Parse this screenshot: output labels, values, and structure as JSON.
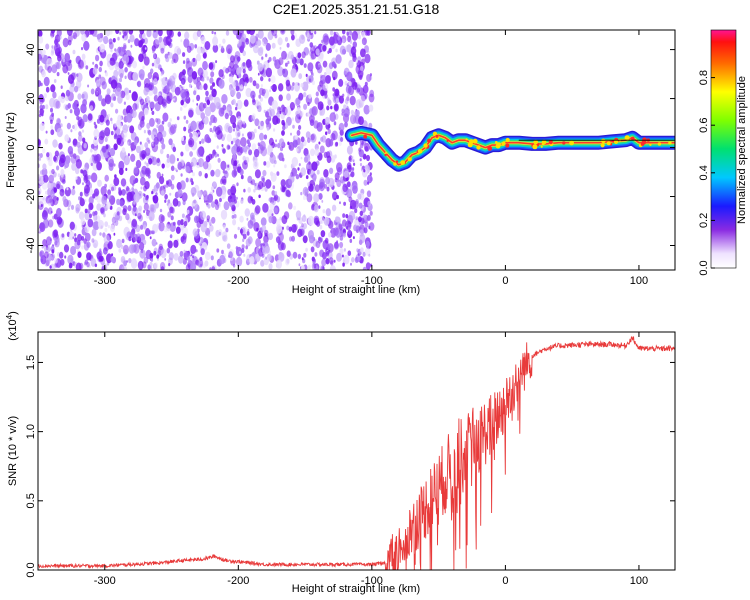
{
  "title": "C2E1.2025.351.21.51.G18",
  "chart_data": [
    {
      "type": "heatmap",
      "xlabel": "Height of straight line (km)",
      "ylabel": "Frequency (Hz)",
      "xlim": [
        -350,
        127
      ],
      "ylim": [
        -50,
        48
      ],
      "xticks": [
        -300,
        -200,
        -100,
        0,
        100
      ],
      "yticks": [
        -40,
        -20,
        0,
        20,
        40
      ],
      "colorbar": {
        "label": "Normalized spectral amplitude",
        "range": [
          0.0,
          1.0
        ],
        "ticks": [
          "0.0",
          "0.2",
          "0.4",
          "0.6",
          "0.8"
        ]
      },
      "signal_trace": {
        "x": [
          -115,
          -108,
          -100,
          -95,
          -90,
          -85,
          -80,
          -75,
          -70,
          -65,
          -60,
          -55,
          -50,
          -45,
          -40,
          -35,
          -30,
          -25,
          -20,
          -15,
          -10,
          -5,
          0,
          10,
          20,
          30,
          40,
          50,
          60,
          70,
          80,
          90,
          95,
          100,
          110,
          120,
          127
        ],
        "y": [
          5,
          6,
          5,
          1,
          -2,
          -5,
          -7,
          -6,
          -3,
          -2,
          0,
          4,
          5,
          4,
          2,
          3,
          3,
          2,
          1,
          0,
          1,
          1,
          2,
          2,
          1.5,
          1.5,
          2,
          2,
          2,
          2,
          2.5,
          3,
          4,
          2,
          2,
          2,
          2
        ]
      },
      "noise_region_x": [
        -350,
        -100
      ]
    },
    {
      "type": "line",
      "xlabel": "Height of straight line (km)",
      "ylabel": "SNR (10 * v/v)",
      "scale_note": "(x10",
      "scale_exp": "4",
      "xlim": [
        -350,
        127
      ],
      "ylim": [
        0.0,
        1.72
      ],
      "xticks": [
        -300,
        -200,
        -100,
        0,
        100
      ],
      "yticks": [
        "0.0",
        "0.5",
        "1.0",
        "1.5"
      ],
      "color": "#e83a3a",
      "series_envelope": {
        "x": [
          -350,
          -300,
          -260,
          -240,
          -225,
          -218,
          -210,
          -180,
          -150,
          -120,
          -100,
          -90,
          -80,
          -70,
          -60,
          -50,
          -40,
          -30,
          -20,
          -10,
          0,
          10,
          20,
          30,
          40,
          60,
          80,
          90,
          95,
          100,
          110,
          120,
          127
        ],
        "y": [
          0.03,
          0.03,
          0.05,
          0.07,
          0.08,
          0.1,
          0.07,
          0.04,
          0.04,
          0.04,
          0.04,
          0.05,
          0.15,
          0.3,
          0.45,
          0.6,
          0.75,
          0.85,
          0.95,
          1.05,
          1.2,
          1.4,
          1.55,
          1.6,
          1.62,
          1.63,
          1.63,
          1.62,
          1.68,
          1.6,
          1.6,
          1.6,
          1.6
        ]
      }
    }
  ]
}
